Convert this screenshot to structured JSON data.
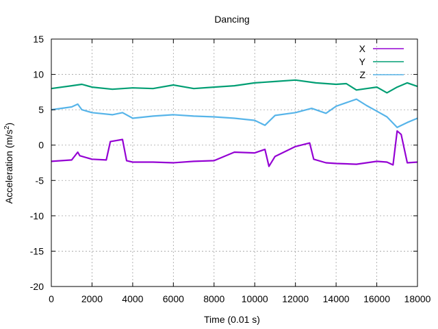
{
  "chart_data": {
    "type": "line",
    "title": "Dancing",
    "xlabel": "Time (0.01 s)",
    "ylabel_main": "Acceleration (m/s",
    "ylabel_sup": "2",
    "ylabel_close": ")",
    "xlim": [
      0,
      18000
    ],
    "ylim": [
      -20,
      15
    ],
    "xticks": [
      0,
      2000,
      4000,
      6000,
      8000,
      10000,
      12000,
      14000,
      16000,
      18000
    ],
    "yticks": [
      -20,
      -15,
      -10,
      -5,
      0,
      5,
      10,
      15
    ],
    "grid": true,
    "legend_position": "top-right",
    "series": [
      {
        "name": "X",
        "color": "#9400d3",
        "x": [
          0,
          1000,
          1300,
          1400,
          2000,
          2700,
          2900,
          3500,
          3700,
          4000,
          5000,
          6000,
          7000,
          8000,
          9000,
          10000,
          10500,
          10700,
          11000,
          12000,
          12700,
          12900,
          13500,
          14000,
          15000,
          16000,
          16500,
          16800,
          17000,
          17200,
          17500,
          18000
        ],
        "y": [
          -2.3,
          -2.1,
          -1.0,
          -1.5,
          -2.0,
          -2.1,
          0.5,
          0.8,
          -2.2,
          -2.4,
          -2.4,
          -2.5,
          -2.3,
          -2.2,
          -1.0,
          -1.1,
          -0.6,
          -3.0,
          -1.6,
          -0.2,
          0.3,
          -2.0,
          -2.5,
          -2.6,
          -2.7,
          -2.3,
          -2.4,
          -2.8,
          2.0,
          1.5,
          -2.5,
          -2.4
        ]
      },
      {
        "name": "Y",
        "color": "#009e73",
        "x": [
          0,
          1000,
          1500,
          2000,
          3000,
          4000,
          5000,
          6000,
          7000,
          8000,
          9000,
          10000,
          11000,
          12000,
          13000,
          14000,
          14500,
          15000,
          15500,
          16000,
          16500,
          17000,
          17500,
          18000
        ],
        "y": [
          8.0,
          8.4,
          8.6,
          8.2,
          7.9,
          8.1,
          8.0,
          8.5,
          8.0,
          8.2,
          8.4,
          8.8,
          9.0,
          9.2,
          8.8,
          8.6,
          8.7,
          7.8,
          8.0,
          8.2,
          7.4,
          8.2,
          8.8,
          8.3
        ]
      },
      {
        "name": "Z",
        "color": "#56b4e9",
        "x": [
          0,
          1000,
          1300,
          1500,
          2000,
          3000,
          3500,
          4000,
          5000,
          6000,
          7000,
          8000,
          9000,
          10000,
          10500,
          11000,
          12000,
          12800,
          13500,
          14000,
          14500,
          15000,
          15500,
          16000,
          16500,
          17000,
          17500,
          18000
        ],
        "y": [
          5.0,
          5.4,
          5.8,
          5.0,
          4.6,
          4.3,
          4.6,
          3.8,
          4.1,
          4.3,
          4.1,
          4.0,
          3.8,
          3.5,
          2.8,
          4.2,
          4.6,
          5.2,
          4.5,
          5.5,
          6.0,
          6.5,
          5.6,
          4.8,
          4.0,
          2.5,
          3.2,
          3.8
        ]
      }
    ]
  }
}
